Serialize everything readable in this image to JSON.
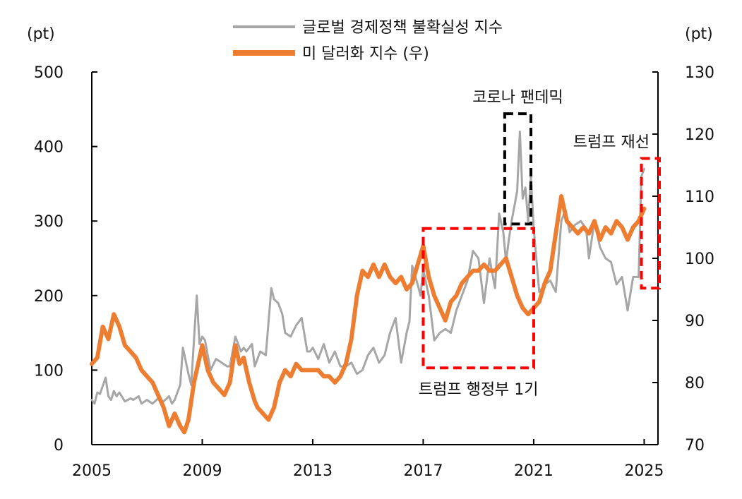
{
  "chart_data": {
    "type": "line",
    "title": "",
    "left_axis": {
      "unit": "(pt)",
      "range": [
        0,
        500
      ],
      "ticks": [
        "0",
        "100",
        "200",
        "300",
        "400",
        "500"
      ]
    },
    "right_axis": {
      "unit": "(pt)",
      "range": [
        70,
        130
      ],
      "ticks": [
        "70",
        "80",
        "90",
        "100",
        "110",
        "120",
        "130"
      ]
    },
    "x_axis": {
      "range": [
        2005,
        2025.5
      ],
      "ticks": [
        "2005",
        "2009",
        "2013",
        "2017",
        "2021",
        "2025"
      ]
    },
    "grid": false,
    "legend_position": "top-center",
    "series": [
      {
        "name": "글로벌 경제정책 불확실성 지수",
        "axis": "left",
        "color": "#a6a6a6",
        "x": [
          2005.0,
          2005.1,
          2005.2,
          2005.3,
          2005.5,
          2005.6,
          2005.7,
          2005.8,
          2005.9,
          2006.0,
          2006.2,
          2006.4,
          2006.5,
          2006.7,
          2006.8,
          2007.0,
          2007.2,
          2007.4,
          2007.6,
          2007.8,
          2007.9,
          2008.0,
          2008.2,
          2008.3,
          2008.5,
          2008.6,
          2008.8,
          2008.9,
          2009.0,
          2009.1,
          2009.3,
          2009.5,
          2009.7,
          2009.9,
          2010.0,
          2010.2,
          2010.4,
          2010.5,
          2010.6,
          2010.8,
          2010.9,
          2011.1,
          2011.3,
          2011.5,
          2011.6,
          2011.75,
          2011.9,
          2012.0,
          2012.2,
          2012.4,
          2012.6,
          2012.8,
          2012.9,
          2013.0,
          2013.2,
          2013.4,
          2013.6,
          2013.8,
          2014.0,
          2014.2,
          2014.4,
          2014.6,
          2014.8,
          2015.0,
          2015.2,
          2015.4,
          2015.6,
          2015.8,
          2016.0,
          2016.2,
          2016.4,
          2016.5,
          2016.6,
          2016.8,
          2016.9,
          2017.0,
          2017.2,
          2017.4,
          2017.6,
          2017.8,
          2018.0,
          2018.2,
          2018.4,
          2018.6,
          2018.8,
          2019.0,
          2019.2,
          2019.4,
          2019.6,
          2019.75,
          2019.9,
          2020.0,
          2020.1,
          2020.2,
          2020.3,
          2020.4,
          2020.5,
          2020.6,
          2020.7,
          2020.8,
          2020.9,
          2021.0,
          2021.2,
          2021.4,
          2021.6,
          2021.8,
          2022.0,
          2022.15,
          2022.3,
          2022.5,
          2022.7,
          2022.9,
          2023.0,
          2023.2,
          2023.4,
          2023.6,
          2023.8,
          2024.0,
          2024.2,
          2024.4,
          2024.6,
          2024.8,
          2024.9,
          2025.0
        ],
        "y": [
          60,
          55,
          70,
          68,
          90,
          65,
          60,
          72,
          65,
          70,
          58,
          62,
          60,
          65,
          55,
          60,
          55,
          62,
          58,
          65,
          55,
          60,
          80,
          130,
          95,
          80,
          200,
          135,
          145,
          140,
          100,
          115,
          110,
          105,
          105,
          145,
          125,
          130,
          125,
          135,
          105,
          125,
          120,
          210,
          195,
          190,
          175,
          150,
          145,
          160,
          170,
          125,
          125,
          130,
          115,
          135,
          110,
          125,
          105,
          105,
          110,
          95,
          100,
          120,
          130,
          110,
          120,
          150,
          170,
          110,
          150,
          165,
          240,
          215,
          200,
          235,
          200,
          140,
          150,
          155,
          150,
          180,
          200,
          220,
          260,
          250,
          190,
          250,
          210,
          310,
          285,
          245,
          275,
          300,
          320,
          340,
          420,
          330,
          345,
          300,
          360,
          290,
          205,
          215,
          220,
          205,
          300,
          315,
          285,
          295,
          300,
          290,
          250,
          300,
          265,
          250,
          245,
          215,
          225,
          180,
          225,
          225,
          360,
          370
        ]
      },
      {
        "name": "미 달러화 지수 (우)",
        "axis": "right",
        "color": "#ed7d31",
        "x": [
          2005.0,
          2005.2,
          2005.4,
          2005.6,
          2005.8,
          2006.0,
          2006.2,
          2006.4,
          2006.6,
          2006.8,
          2007.0,
          2007.2,
          2007.4,
          2007.6,
          2007.8,
          2008.0,
          2008.2,
          2008.35,
          2008.5,
          2008.7,
          2008.9,
          2009.0,
          2009.2,
          2009.4,
          2009.6,
          2009.8,
          2010.0,
          2010.2,
          2010.35,
          2010.5,
          2010.7,
          2010.9,
          2011.0,
          2011.2,
          2011.4,
          2011.6,
          2011.8,
          2012.0,
          2012.2,
          2012.4,
          2012.6,
          2012.8,
          2013.0,
          2013.2,
          2013.4,
          2013.6,
          2013.8,
          2014.0,
          2014.2,
          2014.4,
          2014.6,
          2014.8,
          2015.0,
          2015.2,
          2015.4,
          2015.6,
          2015.8,
          2016.0,
          2016.2,
          2016.4,
          2016.6,
          2016.8,
          2017.0,
          2017.2,
          2017.4,
          2017.6,
          2017.8,
          2018.0,
          2018.2,
          2018.4,
          2018.6,
          2018.8,
          2019.0,
          2019.2,
          2019.4,
          2019.6,
          2019.8,
          2020.0,
          2020.2,
          2020.4,
          2020.6,
          2020.8,
          2021.0,
          2021.2,
          2021.4,
          2021.6,
          2021.8,
          2022.0,
          2022.2,
          2022.4,
          2022.6,
          2022.8,
          2023.0,
          2023.2,
          2023.4,
          2023.6,
          2023.8,
          2024.0,
          2024.2,
          2024.4,
          2024.6,
          2024.8,
          2025.0
        ],
        "y": [
          83,
          84,
          89,
          87,
          91,
          89,
          86,
          85,
          84,
          82,
          81,
          80,
          78,
          76,
          73,
          75,
          73,
          72,
          74,
          80,
          84,
          86,
          82,
          80,
          79,
          78,
          80,
          86,
          83,
          84,
          80,
          77,
          76,
          75,
          74,
          76,
          80,
          82,
          81,
          83,
          82,
          82,
          82,
          82,
          81,
          81,
          80,
          81,
          83,
          87,
          94,
          98,
          97,
          99,
          97,
          99,
          97,
          96,
          97,
          95,
          96,
          99,
          102,
          97,
          94,
          92,
          90,
          93,
          94,
          96,
          97,
          98,
          98,
          99,
          98,
          98,
          99,
          100,
          97,
          94,
          92,
          91,
          92,
          93,
          96,
          98,
          104,
          110,
          106,
          105,
          104,
          105,
          104,
          106,
          103,
          105,
          104,
          106,
          105,
          103,
          105,
          106,
          108
        ]
      }
    ],
    "annotations": [
      {
        "label": "코로나 팬데믹",
        "box_color": "#000000",
        "x_range": [
          2019.95,
          2020.9
        ],
        "y_range_left": [
          296,
          444
        ]
      },
      {
        "label": "트럼프 행정부 1기",
        "box_color": "#ff0000",
        "x_range": [
          2017.0,
          2021.0
        ],
        "y_range_left": [
          103,
          290
        ]
      },
      {
        "label": "트럼프 재선",
        "box_color": "#ff0000",
        "x_range": [
          2024.9,
          2025.7
        ],
        "y_range_left": [
          210,
          384
        ]
      }
    ]
  }
}
